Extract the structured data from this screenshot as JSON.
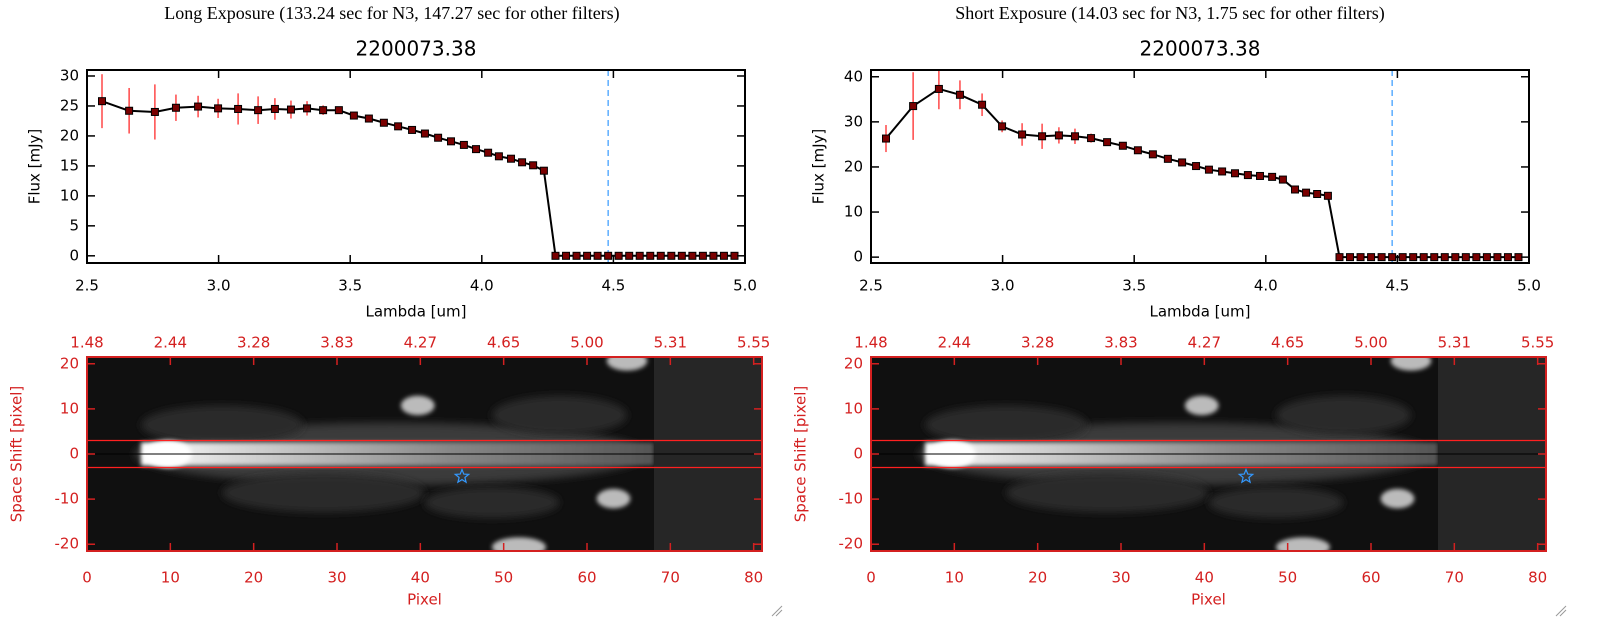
{
  "chart_data": [
    {
      "type": "line",
      "suptitle": "Long Exposure (133.24 sec for N3, 147.27 sec for other filters)",
      "title": "2200073.38",
      "xlabel": "Lambda [um]",
      "ylabel": "Flux [mJy]",
      "x": [
        2.557,
        2.66,
        2.758,
        2.838,
        2.922,
        2.998,
        3.074,
        3.15,
        3.214,
        3.275,
        3.336,
        3.397,
        3.457,
        3.514,
        3.571,
        3.628,
        3.682,
        3.735,
        3.784,
        3.834,
        3.883,
        3.932,
        3.978,
        4.024,
        4.065,
        4.111,
        4.153,
        4.195,
        4.236,
        4.28,
        4.32,
        4.36,
        4.4,
        4.44,
        4.48,
        4.52,
        4.56,
        4.6,
        4.64,
        4.68,
        4.72,
        4.76,
        4.8,
        4.84,
        4.88,
        4.92,
        4.96
      ],
      "values": [
        25.8,
        24.2,
        24.0,
        24.7,
        24.9,
        24.6,
        24.5,
        24.3,
        24.5,
        24.4,
        24.6,
        24.3,
        24.3,
        23.4,
        22.9,
        22.2,
        21.6,
        21.0,
        20.4,
        19.7,
        19.1,
        18.5,
        17.8,
        17.2,
        16.6,
        16.2,
        15.6,
        15.1,
        14.2,
        0,
        0,
        0,
        0,
        0,
        0,
        0,
        0,
        0,
        0,
        0,
        0,
        0,
        0,
        0,
        0,
        0,
        0
      ],
      "errors": [
        4.5,
        3.8,
        4.6,
        2.2,
        1.8,
        1.6,
        2.6,
        2.3,
        1.8,
        1.5,
        1.2,
        0.8,
        0.6,
        0.5,
        0.4,
        0.4,
        0.4,
        0.4,
        0.4,
        0.4,
        0.4,
        0.4,
        0.4,
        0.4,
        0.4,
        0.4,
        0.4,
        0.4,
        0.4,
        0,
        0,
        0,
        0,
        0,
        0,
        0,
        0,
        0,
        0,
        0,
        0,
        0,
        0,
        0,
        0,
        0,
        0
      ],
      "color": "#000000",
      "marker_color": "#7a0000",
      "error_color": "#ff1a1a",
      "xlim": [
        2.5,
        5.0
      ],
      "ylim": [
        -1.2,
        31
      ],
      "xticks": [
        2.5,
        {
          "value": 3,
          "label": "3.0"
        },
        3.5,
        {
          "value": 4,
          "label": "4.0"
        },
        4.5,
        {
          "value": 5,
          "label": "5.0"
        }
      ],
      "yticks": [
        0,
        5,
        10,
        15,
        20,
        25,
        30
      ],
      "vline": 4.48,
      "vline_color": "#3399ff"
    },
    {
      "type": "line",
      "suptitle": "Short Exposure (14.03 sec for N3, 1.75 sec for other filters)",
      "title": "2200073.38",
      "xlabel": "Lambda [um]",
      "ylabel": "Flux [mJy]",
      "x": [
        2.557,
        2.66,
        2.758,
        2.838,
        2.922,
        2.998,
        3.074,
        3.15,
        3.214,
        3.275,
        3.336,
        3.397,
        3.457,
        3.514,
        3.571,
        3.628,
        3.682,
        3.735,
        3.784,
        3.834,
        3.883,
        3.932,
        3.978,
        4.024,
        4.065,
        4.111,
        4.153,
        4.195,
        4.236,
        4.28,
        4.32,
        4.36,
        4.4,
        4.44,
        4.48,
        4.52,
        4.56,
        4.6,
        4.64,
        4.68,
        4.72,
        4.76,
        4.8,
        4.84,
        4.88,
        4.92,
        4.96
      ],
      "values": [
        26.3,
        33.5,
        37.3,
        36.0,
        33.8,
        29.0,
        27.2,
        26.8,
        27.0,
        26.8,
        26.4,
        25.5,
        24.7,
        23.7,
        22.8,
        21.8,
        21.0,
        20.2,
        19.4,
        19.0,
        18.6,
        18.2,
        18.0,
        17.8,
        17.2,
        15.0,
        14.3,
        14.0,
        13.6,
        0,
        0,
        0,
        0,
        0,
        0,
        0,
        0,
        0,
        0,
        0,
        0,
        0,
        0,
        0,
        0,
        0,
        0
      ],
      "errors": [
        3.0,
        7.5,
        4.5,
        3.2,
        2.5,
        1.3,
        2.5,
        2.8,
        1.8,
        1.7,
        1.0,
        0.6,
        0.5,
        0.5,
        0.5,
        0.5,
        0.5,
        0.5,
        0.5,
        0.5,
        0.5,
        0.5,
        0.5,
        0.5,
        0.5,
        0.5,
        0.5,
        0.5,
        0.5,
        0,
        0,
        0,
        0,
        0,
        0,
        0,
        0,
        0,
        0,
        0,
        0,
        0,
        0,
        0,
        0,
        0,
        0
      ],
      "color": "#000000",
      "marker_color": "#7a0000",
      "error_color": "#ff1a1a",
      "xlim": [
        2.5,
        5.0
      ],
      "ylim": [
        -1.3,
        41.5
      ],
      "xticks": [
        2.5,
        {
          "value": 3,
          "label": "3.0"
        },
        3.5,
        {
          "value": 4,
          "label": "4.0"
        },
        4.5,
        {
          "value": 5,
          "label": "5.0"
        }
      ],
      "yticks": [
        0,
        10,
        20,
        30,
        40
      ],
      "vline": 4.48,
      "vline_color": "#3399ff"
    },
    {
      "type": "image",
      "xlabel": "Pixel",
      "ylabel": "Space Shift [pixel]",
      "frame_color": "#d42020",
      "xlim": [
        0,
        81
      ],
      "ylim": [
        -21.5,
        21.5
      ],
      "xticks": [
        0,
        10,
        20,
        30,
        40,
        50,
        60,
        70,
        80
      ],
      "yticks": [
        -20,
        -10,
        0,
        10,
        20
      ],
      "x2ticks": [
        {
          "value": 0,
          "label": "1.48"
        },
        {
          "value": 10,
          "label": "2.44"
        },
        {
          "value": 20,
          "label": "3.28"
        },
        {
          "value": 30,
          "label": "3.83"
        },
        {
          "value": 40,
          "label": "4.27"
        },
        {
          "value": 50,
          "label": "4.65"
        },
        {
          "value": 60,
          "label": "5.00"
        },
        {
          "value": 70,
          "label": "5.31"
        },
        {
          "value": 80,
          "label": "5.55"
        }
      ],
      "hlines": [
        3,
        -3
      ],
      "hline_color": "#ff2020",
      "center": 0,
      "center_color": "#000000",
      "marker": {
        "x": 45,
        "y": -5,
        "color": "#3399ff"
      }
    },
    {
      "type": "image",
      "xlabel": "Pixel",
      "ylabel": "Space Shift [pixel]",
      "frame_color": "#d42020",
      "xlim": [
        0,
        81
      ],
      "ylim": [
        -21.5,
        21.5
      ],
      "xticks": [
        0,
        10,
        20,
        30,
        40,
        50,
        60,
        70,
        80
      ],
      "yticks": [
        -20,
        -10,
        0,
        10,
        20
      ],
      "x2ticks": [
        {
          "value": 0,
          "label": "1.48"
        },
        {
          "value": 10,
          "label": "2.44"
        },
        {
          "value": 20,
          "label": "3.28"
        },
        {
          "value": 30,
          "label": "3.83"
        },
        {
          "value": 40,
          "label": "4.27"
        },
        {
          "value": 50,
          "label": "4.65"
        },
        {
          "value": 60,
          "label": "5.00"
        },
        {
          "value": 70,
          "label": "5.31"
        },
        {
          "value": 80,
          "label": "5.55"
        }
      ],
      "hlines": [
        3,
        -3
      ],
      "hline_color": "#ff2020",
      "center": 0,
      "center_color": "#000000",
      "marker": {
        "x": 45,
        "y": -5,
        "color": "#3399ff"
      }
    }
  ]
}
